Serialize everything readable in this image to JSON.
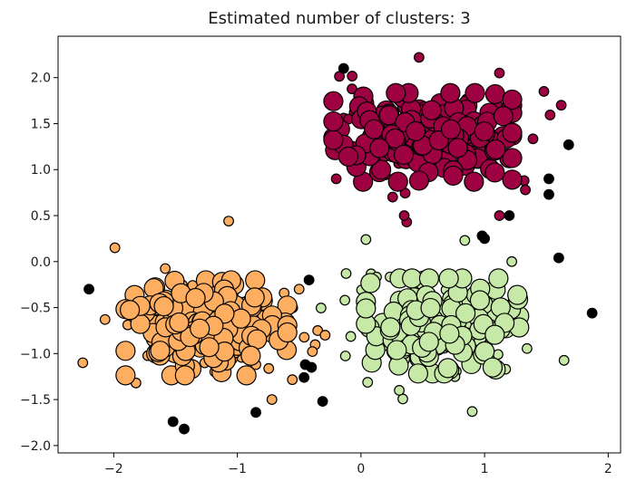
{
  "chart_data": {
    "type": "scatter",
    "title": "Estimated number of clusters: 3",
    "xlabel": "",
    "ylabel": "",
    "xlim": [
      -2.45,
      2.1
    ],
    "ylim": [
      -2.08,
      2.45
    ],
    "xticks": [
      -2,
      -1,
      0,
      1,
      2
    ],
    "yticks": [
      -2.0,
      -1.5,
      -1.0,
      -0.5,
      0.0,
      0.5,
      1.0,
      1.5,
      2.0
    ],
    "xtick_labels": [
      "−2",
      "−1",
      "0",
      "1",
      "2"
    ],
    "ytick_labels": [
      "−2.0",
      "−1.5",
      "−1.0",
      "−0.5",
      "0.0",
      "0.5",
      "1.0",
      "1.5",
      "2.0"
    ],
    "grid": false,
    "legend": "none",
    "series": [
      {
        "color": "#9e0142",
        "center": [
          0.5,
          1.35
        ],
        "spread": [
          0.42,
          0.28
        ],
        "core_points": 170,
        "border_points": 45,
        "seed": 11,
        "highlights": [
          [
            -0.14,
            1.56
          ],
          [
            -0.1,
            1.55
          ],
          [
            1.12,
            2.05
          ],
          [
            1.62,
            1.7
          ],
          [
            1.48,
            1.85
          ],
          [
            -0.2,
            0.9
          ],
          [
            1.12,
            0.5
          ],
          [
            0.37,
            0.43
          ],
          [
            0.35,
            0.5
          ],
          [
            1.32,
            0.88
          ],
          [
            1.33,
            0.78
          ],
          [
            0.47,
            2.22
          ]
        ]
      },
      {
        "color": "#fdae61",
        "center": [
          -1.25,
          -0.72
        ],
        "spread": [
          0.38,
          0.3
        ],
        "core_points": 170,
        "border_points": 45,
        "seed": 23,
        "highlights": [
          [
            -2.25,
            -1.1
          ],
          [
            -2.07,
            -0.63
          ],
          [
            -1.99,
            0.15
          ],
          [
            -0.5,
            -0.3
          ],
          [
            -0.35,
            -0.75
          ],
          [
            -0.85,
            -1.12
          ],
          [
            -0.72,
            -1.5
          ],
          [
            -1.07,
            0.44
          ],
          [
            -1.82,
            -1.32
          ],
          [
            -0.29,
            -0.8
          ]
        ]
      },
      {
        "color": "#c7e9a8",
        "center": [
          0.66,
          -0.7
        ],
        "spread": [
          0.36,
          0.3
        ],
        "core_points": 160,
        "border_points": 40,
        "seed": 37,
        "highlights": [
          [
            0.04,
            0.24
          ],
          [
            -0.12,
            -0.13
          ],
          [
            -0.13,
            -0.42
          ],
          [
            0.84,
            0.23
          ],
          [
            0.9,
            -1.63
          ],
          [
            1.3,
            -0.72
          ],
          [
            1.22,
            0.0
          ],
          [
            1.17,
            -1.17
          ],
          [
            0.31,
            -1.4
          ]
        ]
      }
    ],
    "noise": {
      "color": "#000000",
      "points": [
        [
          -0.14,
          2.1
        ],
        [
          1.68,
          1.27
        ],
        [
          1.52,
          0.9
        ],
        [
          1.52,
          0.73
        ],
        [
          1.2,
          0.5
        ],
        [
          0.98,
          0.28
        ],
        [
          1.0,
          0.25
        ],
        [
          1.6,
          0.04
        ],
        [
          1.87,
          -0.56
        ],
        [
          -2.2,
          -0.3
        ],
        [
          -0.42,
          -0.2
        ],
        [
          -0.45,
          -1.12
        ],
        [
          -0.4,
          -1.15
        ],
        [
          -0.46,
          -1.26
        ],
        [
          -0.31,
          -1.52
        ],
        [
          -0.85,
          -1.64
        ],
        [
          -1.52,
          -1.74
        ],
        [
          -1.43,
          -1.82
        ]
      ]
    }
  }
}
